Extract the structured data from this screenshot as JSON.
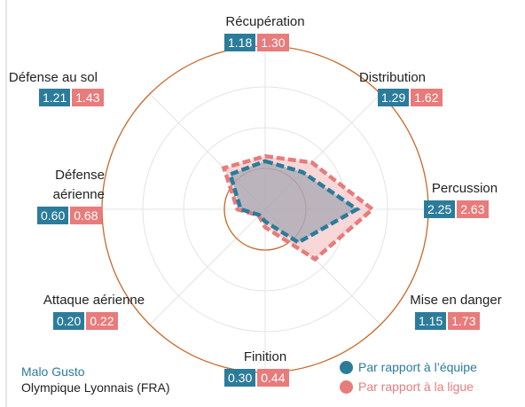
{
  "chart_data": {
    "type": "radar",
    "categories": [
      "Récupération",
      "Distribution",
      "Percussion",
      "Mise en danger",
      "Finition",
      "Attaque aérienne",
      "Défense aérienne",
      "Défense au sol"
    ],
    "series": [
      {
        "name": "Par rapport à l’équipe",
        "color": "#2b7c9b",
        "values": [
          1.18,
          1.29,
          2.25,
          1.15,
          0.3,
          0.2,
          0.6,
          1.21
        ],
        "value_labels": [
          "1.18",
          "1.29",
          "2.25",
          "1.15",
          "0.30",
          "0.20",
          "0.60",
          "1.21"
        ]
      },
      {
        "name": "Par rapport à la ligue",
        "color": "#e87b7b",
        "values": [
          1.3,
          1.62,
          2.63,
          1.73,
          0.44,
          0.22,
          0.68,
          1.43
        ],
        "value_labels": [
          "1.30",
          "1.62",
          "2.63",
          "1.73",
          "0.44",
          "0.22",
          "0.68",
          "1.43"
        ]
      }
    ],
    "rlim": [
      0,
      4
    ],
    "rticks": [
      1,
      2,
      3,
      4
    ],
    "player": "Malo Gusto",
    "team": "Olympique Lyonnais (FRA)"
  }
}
